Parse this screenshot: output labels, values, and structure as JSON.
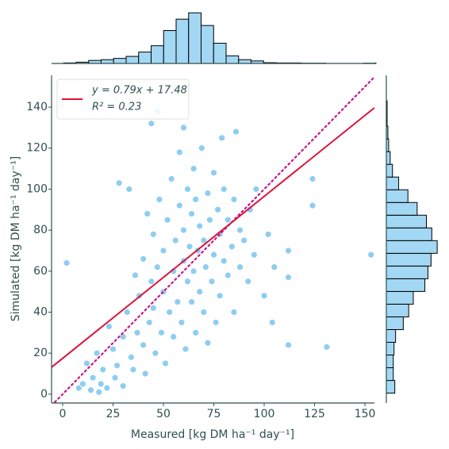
{
  "chart_data": {
    "type": "scatter",
    "xlabel": "Measured [kg DM ha⁻¹ day⁻¹]",
    "ylabel": "Simulated [kg DM ha⁻¹ day⁻¹]",
    "color": "#8ecdf2",
    "xlim": [
      -5.5,
      154.7
    ],
    "ylim": [
      -4.3,
      155.5
    ],
    "xticks": [
      0,
      25,
      50,
      75,
      100,
      125,
      150
    ],
    "yticks": [
      0,
      20,
      40,
      60,
      80,
      100,
      120,
      140
    ],
    "x": [
      2,
      8,
      10,
      12,
      14,
      15,
      17,
      18,
      19,
      20,
      22,
      23,
      25,
      26,
      27,
      28,
      30,
      30,
      32,
      33,
      34,
      35,
      36,
      37,
      38,
      40,
      40,
      41,
      42,
      43,
      44,
      45,
      45,
      46,
      47,
      48,
      49,
      50,
      50,
      51,
      52,
      53,
      54,
      55,
      55,
      56,
      57,
      58,
      58,
      59,
      60,
      60,
      61,
      62,
      62,
      63,
      64,
      64,
      65,
      65,
      66,
      66,
      67,
      68,
      68,
      69,
      70,
      70,
      71,
      72,
      72,
      73,
      74,
      75,
      75,
      76,
      77,
      78,
      78,
      79,
      80,
      80,
      82,
      82,
      84,
      85,
      85,
      86,
      88,
      88,
      90,
      92,
      93,
      95,
      96,
      100,
      102,
      104,
      105,
      112,
      112,
      112,
      124,
      124,
      131,
      153,
      47,
      44,
      60
    ],
    "y": [
      64,
      3,
      5,
      15,
      2,
      8,
      20,
      1,
      5,
      12,
      3,
      33,
      22,
      8,
      14,
      103,
      4,
      28,
      40,
      100,
      18,
      12,
      58,
      30,
      48,
      24,
      66,
      10,
      88,
      35,
      55,
      42,
      78,
      20,
      62,
      95,
      30,
      70,
      50,
      15,
      85,
      40,
      105,
      60,
      28,
      75,
      45,
      92,
      118,
      35,
      65,
      80,
      22,
      100,
      55,
      72,
      88,
      45,
      110,
      60,
      30,
      95,
      70,
      82,
      50,
      120,
      40,
      75,
      62,
      98,
      25,
      85,
      55,
      108,
      68,
      35,
      90,
      78,
      48,
      125,
      65,
      100,
      58,
      85,
      72,
      95,
      40,
      128,
      62,
      80,
      75,
      55,
      90,
      68,
      100,
      48,
      78,
      35,
      62,
      24,
      57,
      70,
      92,
      105,
      23,
      68,
      138,
      132,
      130
    ],
    "fit": {
      "label": "y = 0.79x + 17.48",
      "r2_label": "R² = 0.23",
      "slope": 0.79,
      "intercept": 17.48,
      "color": "#dc143c"
    },
    "identity_line": {
      "color": "#c71585"
    },
    "hist_color": "#a3d8f4",
    "marginal_x": {
      "bins": [
        0.5,
        6.7,
        12.9,
        19.1,
        25.3,
        31.5,
        37.7,
        43.9,
        50.1,
        56.3,
        62.5,
        68.7,
        74.9,
        81.1,
        87.3,
        93.5,
        99.7,
        105.9,
        112.1,
        118.3,
        124.5,
        130.7,
        136.9,
        143.1,
        149.3,
        155.5
      ],
      "counts": [
        2,
        5,
        12,
        15,
        20,
        28,
        45,
        70,
        130,
        175,
        200,
        150,
        80,
        30,
        15,
        10,
        3,
        2,
        2,
        1,
        1,
        0,
        0,
        0,
        1
      ],
      "countlim": [
        0,
        210
      ]
    },
    "marginal_y": {
      "bins": [
        0.5,
        6.7,
        12.9,
        19.1,
        25.3,
        31.5,
        37.7,
        43.9,
        50.1,
        56.3,
        62.5,
        68.7,
        74.9,
        81.1,
        87.3,
        93.5,
        99.7,
        105.9,
        112.1,
        118.3,
        124.5,
        130.7,
        136.9,
        143.1,
        149.3,
        155.5
      ],
      "counts": [
        11,
        9,
        9,
        10,
        12,
        22,
        29,
        35,
        50,
        54,
        58,
        66,
        59,
        52,
        40,
        28,
        16,
        8,
        5,
        3,
        2,
        1,
        1,
        0,
        0
      ],
      "countlim": [
        0,
        70
      ]
    }
  }
}
